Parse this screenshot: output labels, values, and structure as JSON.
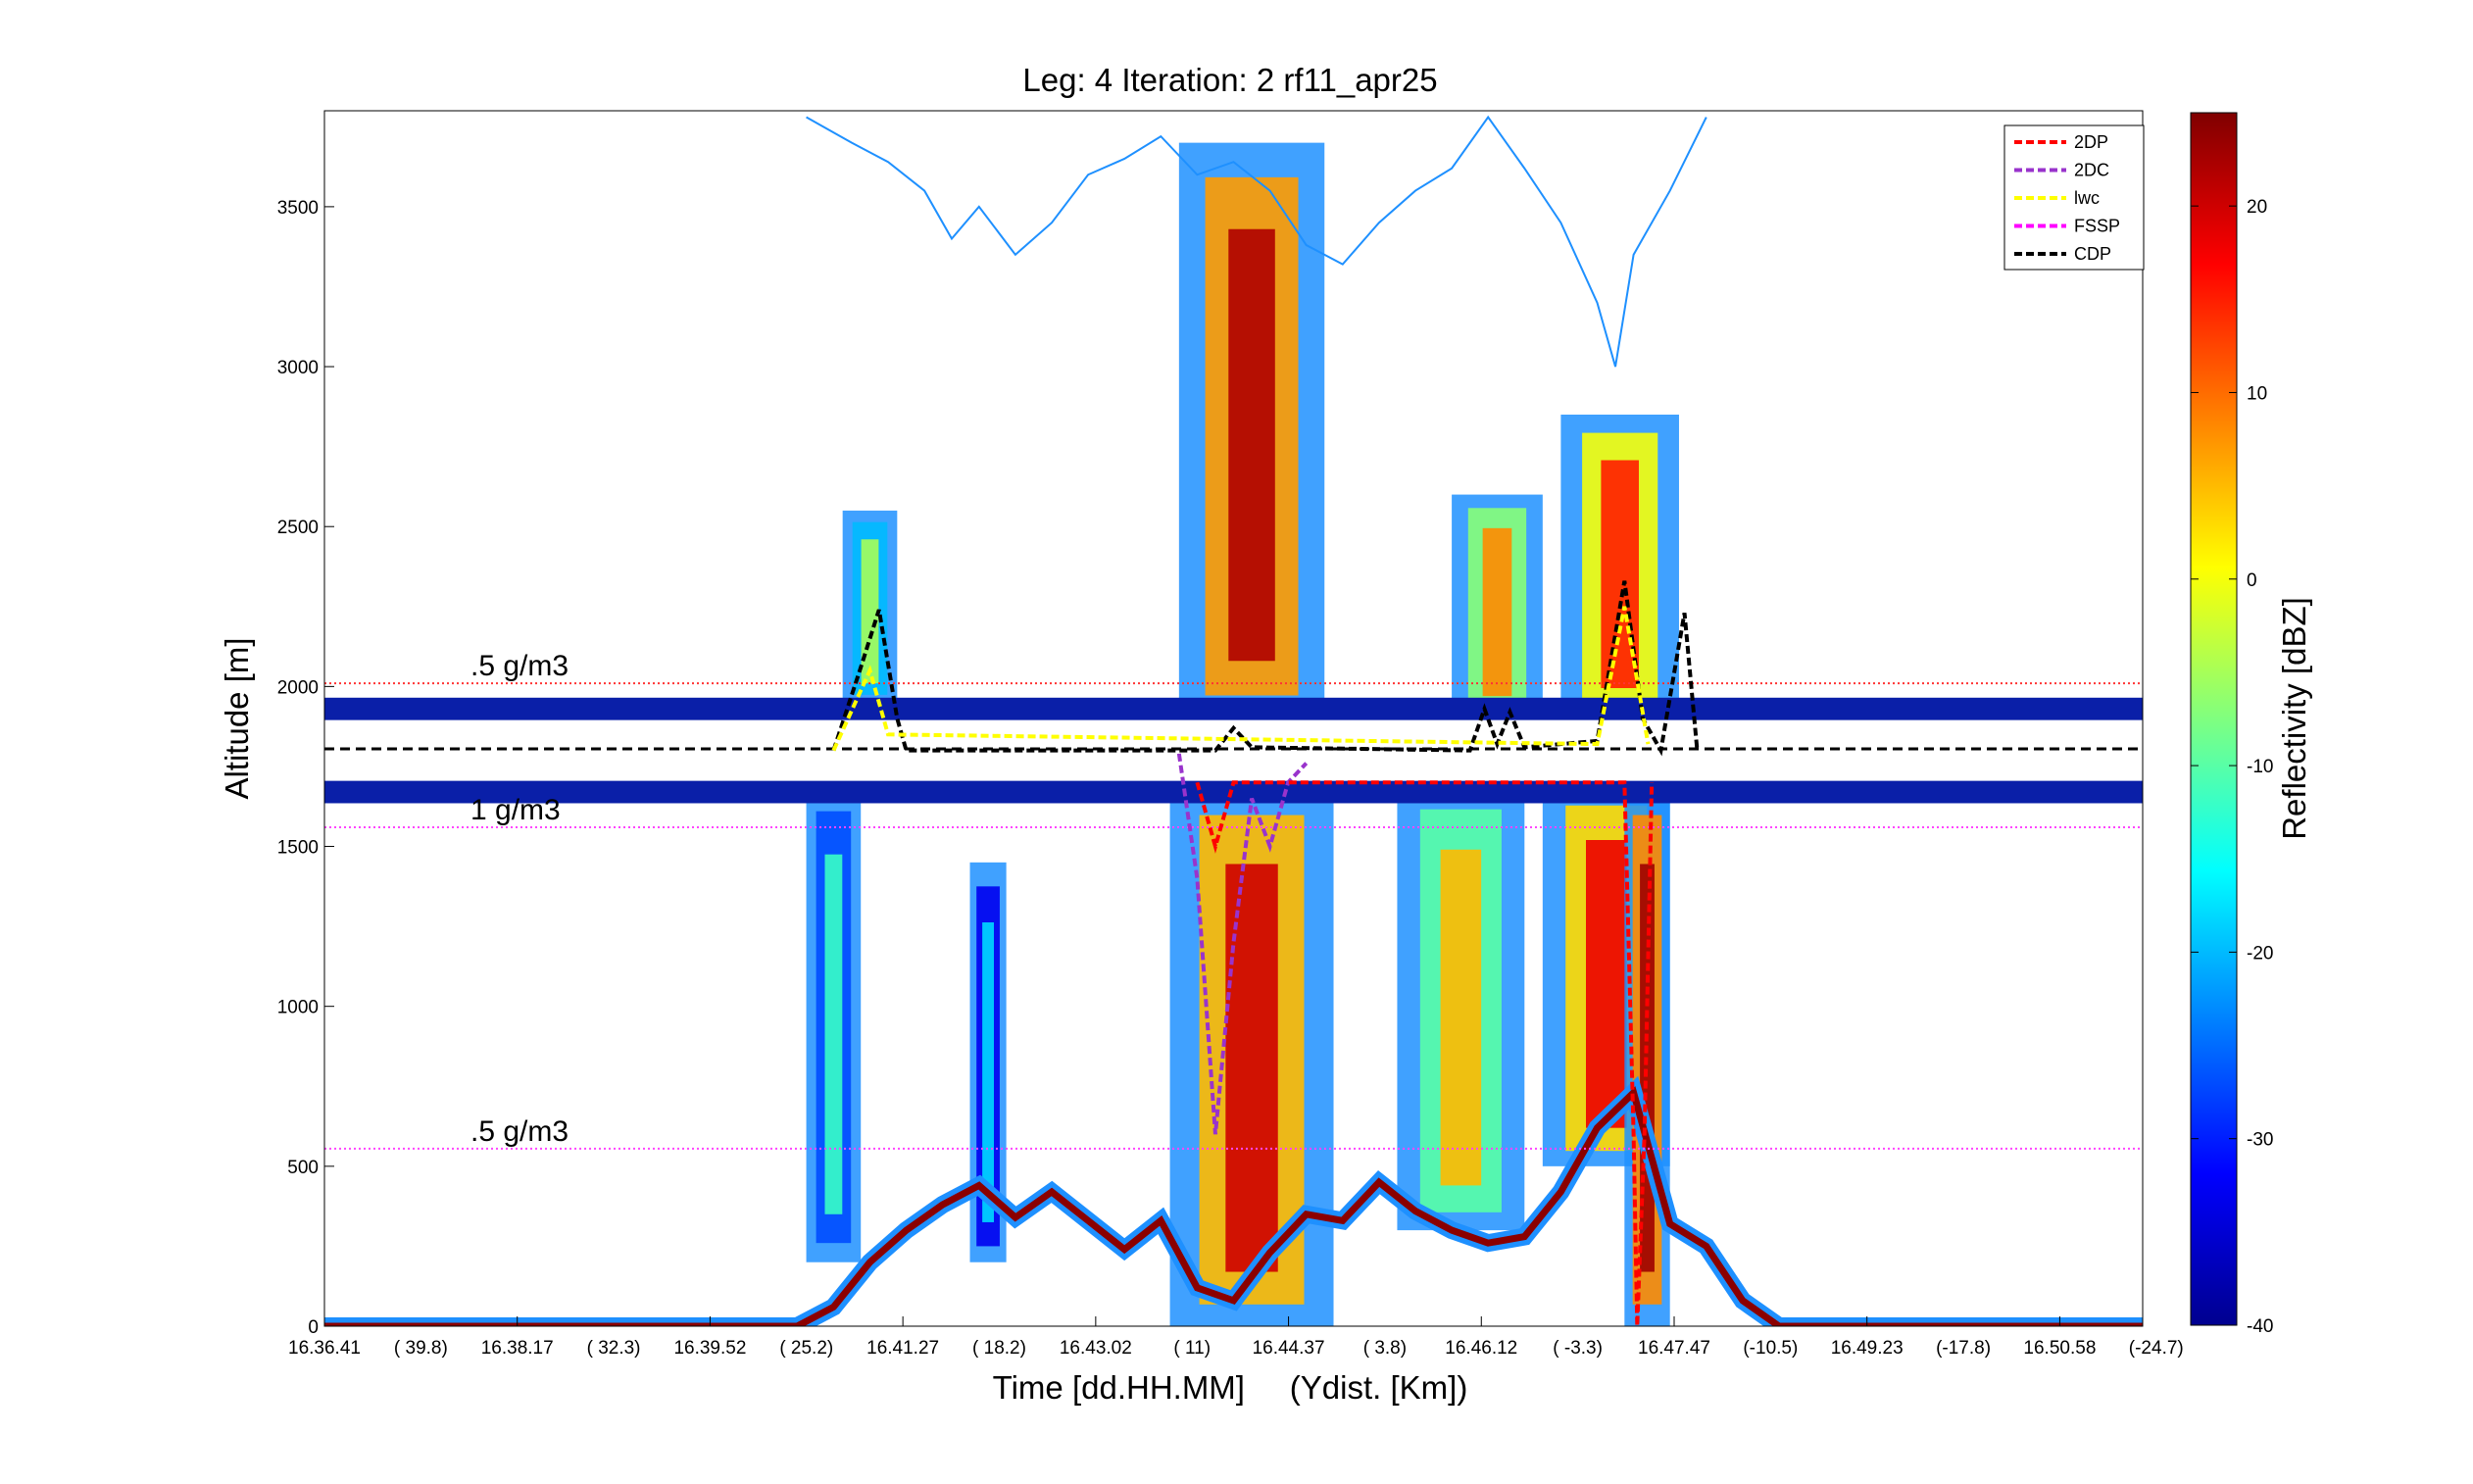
{
  "chart_data": {
    "type": "heatmap",
    "title": "Leg: 4  Iteration: 2  rf11_apr25",
    "xlabel": "Time [dd.HH.MM]     (Ydist. [Km])",
    "ylabel": "Altitude [m]",
    "ylim": [
      0,
      3800
    ],
    "yticks": [
      0,
      500,
      1000,
      1500,
      2000,
      2500,
      3000,
      3500
    ],
    "xtick_labels": [
      {
        "time": "16.36.41",
        "dist": "( 39.8)"
      },
      {
        "time": "16.38.17",
        "dist": "( 32.3)"
      },
      {
        "time": "16.39.52",
        "dist": "( 25.2)"
      },
      {
        "time": "16.41.27",
        "dist": "( 18.2)"
      },
      {
        "time": "16.43.02",
        "dist": "(   11)"
      },
      {
        "time": "16.44.37",
        "dist": "(  3.8)"
      },
      {
        "time": "16.46.12",
        "dist": "( -3.3)"
      },
      {
        "time": "16.47.47",
        "dist": "(-10.5)"
      },
      {
        "time": "16.49.23",
        "dist": "(-17.8)"
      },
      {
        "time": "16.50.58",
        "dist": "(-24.7)"
      }
    ],
    "colorbar": {
      "label": "Reflectivity [dBZ]",
      "range": [
        -40,
        25
      ],
      "ticks": [
        -40,
        -30,
        -20,
        -10,
        0,
        10,
        20
      ]
    },
    "legend": {
      "placement": "top-right",
      "entries": [
        {
          "name": "2DP",
          "color": "#ff0000"
        },
        {
          "name": "2DC",
          "color": "#9933cc"
        },
        {
          "name": "lwc",
          "color": "#ffff00"
        },
        {
          "name": "FSSP",
          "color": "#ff00ff"
        },
        {
          "name": "CDP",
          "color": "#000000"
        }
      ]
    },
    "annotations": [
      {
        "text": ".5 g/m3",
        "altitude": 2010
      },
      {
        "text": "1 g/m3",
        "altitude": 1560
      },
      {
        "text": ".5 g/m3",
        "altitude": 555
      }
    ],
    "reference_lines": [
      {
        "altitude": 2010,
        "color": "#ff3333"
      },
      {
        "altitude": 1560,
        "color": "#ff44ff"
      },
      {
        "altitude": 555,
        "color": "#ff44ff"
      }
    ],
    "flight_altitude": 1805,
    "echo_cells": [
      {
        "x_start": 0.265,
        "x_end": 0.295,
        "bottom": 200,
        "top": 1700,
        "peak_dbz": -12
      },
      {
        "x_start": 0.285,
        "x_end": 0.315,
        "bottom": 1950,
        "top": 2550,
        "peak_dbz": -5
      },
      {
        "x_start": 0.355,
        "x_end": 0.375,
        "bottom": 200,
        "top": 1450,
        "peak_dbz": -18
      },
      {
        "x_start": 0.465,
        "x_end": 0.555,
        "bottom": 0,
        "top": 1700,
        "peak_dbz": 20
      },
      {
        "x_start": 0.47,
        "x_end": 0.55,
        "bottom": 1900,
        "top": 3700,
        "peak_dbz": 22
      },
      {
        "x_start": 0.59,
        "x_end": 0.66,
        "bottom": 300,
        "top": 1700,
        "peak_dbz": 5
      },
      {
        "x_start": 0.62,
        "x_end": 0.67,
        "bottom": 1900,
        "top": 2600,
        "peak_dbz": 8
      },
      {
        "x_start": 0.67,
        "x_end": 0.74,
        "bottom": 500,
        "top": 1700,
        "peak_dbz": 18
      },
      {
        "x_start": 0.68,
        "x_end": 0.745,
        "bottom": 1900,
        "top": 2850,
        "peak_dbz": 15
      },
      {
        "x_start": 0.715,
        "x_end": 0.74,
        "bottom": 0,
        "top": 1700,
        "peak_dbz": 23
      }
    ],
    "surface_profile": [
      {
        "x": 0.0,
        "alt": 0
      },
      {
        "x": 0.26,
        "alt": 0
      },
      {
        "x": 0.28,
        "alt": 60
      },
      {
        "x": 0.3,
        "alt": 200
      },
      {
        "x": 0.32,
        "alt": 300
      },
      {
        "x": 0.34,
        "alt": 380
      },
      {
        "x": 0.36,
        "alt": 440
      },
      {
        "x": 0.38,
        "alt": 340
      },
      {
        "x": 0.4,
        "alt": 420
      },
      {
        "x": 0.42,
        "alt": 330
      },
      {
        "x": 0.44,
        "alt": 240
      },
      {
        "x": 0.46,
        "alt": 330
      },
      {
        "x": 0.48,
        "alt": 120
      },
      {
        "x": 0.5,
        "alt": 80
      },
      {
        "x": 0.52,
        "alt": 230
      },
      {
        "x": 0.54,
        "alt": 350
      },
      {
        "x": 0.56,
        "alt": 330
      },
      {
        "x": 0.58,
        "alt": 450
      },
      {
        "x": 0.6,
        "alt": 360
      },
      {
        "x": 0.62,
        "alt": 300
      },
      {
        "x": 0.64,
        "alt": 260
      },
      {
        "x": 0.66,
        "alt": 280
      },
      {
        "x": 0.68,
        "alt": 420
      },
      {
        "x": 0.7,
        "alt": 620
      },
      {
        "x": 0.72,
        "alt": 730
      },
      {
        "x": 0.74,
        "alt": 320
      },
      {
        "x": 0.76,
        "alt": 250
      },
      {
        "x": 0.78,
        "alt": 80
      },
      {
        "x": 0.8,
        "alt": 0
      },
      {
        "x": 1.0,
        "alt": 0
      }
    ],
    "upper_trace": [
      {
        "x": 0.265,
        "alt": 3780
      },
      {
        "x": 0.29,
        "alt": 3700
      },
      {
        "x": 0.31,
        "alt": 3640
      },
      {
        "x": 0.33,
        "alt": 3550
      },
      {
        "x": 0.345,
        "alt": 3400
      },
      {
        "x": 0.36,
        "alt": 3500
      },
      {
        "x": 0.38,
        "alt": 3350
      },
      {
        "x": 0.4,
        "alt": 3450
      },
      {
        "x": 0.42,
        "alt": 3600
      },
      {
        "x": 0.44,
        "alt": 3650
      },
      {
        "x": 0.46,
        "alt": 3720
      },
      {
        "x": 0.48,
        "alt": 3600
      },
      {
        "x": 0.5,
        "alt": 3640
      },
      {
        "x": 0.52,
        "alt": 3550
      },
      {
        "x": 0.54,
        "alt": 3380
      },
      {
        "x": 0.56,
        "alt": 3320
      },
      {
        "x": 0.58,
        "alt": 3450
      },
      {
        "x": 0.6,
        "alt": 3550
      },
      {
        "x": 0.62,
        "alt": 3620
      },
      {
        "x": 0.64,
        "alt": 3780
      },
      {
        "x": 0.66,
        "alt": 3620
      },
      {
        "x": 0.68,
        "alt": 3450
      },
      {
        "x": 0.7,
        "alt": 3200
      },
      {
        "x": 0.71,
        "alt": 3000
      },
      {
        "x": 0.72,
        "alt": 3350
      },
      {
        "x": 0.74,
        "alt": 3550
      },
      {
        "x": 0.76,
        "alt": 3780
      }
    ],
    "series": [
      {
        "name": "CDP",
        "color": "#000000",
        "points": [
          {
            "x": 0.28,
            "alt": 1800
          },
          {
            "x": 0.295,
            "alt": 2060
          },
          {
            "x": 0.305,
            "alt": 2240
          },
          {
            "x": 0.315,
            "alt": 1900
          },
          {
            "x": 0.32,
            "alt": 1800
          },
          {
            "x": 0.49,
            "alt": 1800
          },
          {
            "x": 0.5,
            "alt": 1870
          },
          {
            "x": 0.51,
            "alt": 1810
          },
          {
            "x": 0.63,
            "alt": 1800
          },
          {
            "x": 0.638,
            "alt": 1930
          },
          {
            "x": 0.645,
            "alt": 1820
          },
          {
            "x": 0.652,
            "alt": 1920
          },
          {
            "x": 0.66,
            "alt": 1810
          },
          {
            "x": 0.7,
            "alt": 1830
          },
          {
            "x": 0.715,
            "alt": 2330
          },
          {
            "x": 0.725,
            "alt": 1900
          },
          {
            "x": 0.735,
            "alt": 1800
          },
          {
            "x": 0.748,
            "alt": 2230
          },
          {
            "x": 0.755,
            "alt": 1800
          }
        ]
      },
      {
        "name": "lwc",
        "color": "#ffff00",
        "points": [
          {
            "x": 0.28,
            "alt": 1800
          },
          {
            "x": 0.3,
            "alt": 2050
          },
          {
            "x": 0.31,
            "alt": 1850
          },
          {
            "x": 0.7,
            "alt": 1820
          },
          {
            "x": 0.715,
            "alt": 2250
          },
          {
            "x": 0.728,
            "alt": 1820
          }
        ]
      },
      {
        "name": "2DC",
        "color": "#9933cc",
        "points": [
          {
            "x": 0.47,
            "alt": 1790
          },
          {
            "x": 0.48,
            "alt": 1400
          },
          {
            "x": 0.49,
            "alt": 600
          },
          {
            "x": 0.5,
            "alt": 1200
          },
          {
            "x": 0.51,
            "alt": 1650
          },
          {
            "x": 0.52,
            "alt": 1500
          },
          {
            "x": 0.53,
            "alt": 1700
          },
          {
            "x": 0.54,
            "alt": 1760
          }
        ]
      },
      {
        "name": "2DP",
        "color": "#ff0000",
        "points": [
          {
            "x": 0.48,
            "alt": 1700
          },
          {
            "x": 0.49,
            "alt": 1500
          },
          {
            "x": 0.5,
            "alt": 1700
          },
          {
            "x": 0.715,
            "alt": 1700
          },
          {
            "x": 0.72,
            "alt": 600
          },
          {
            "x": 0.722,
            "alt": 0
          },
          {
            "x": 0.726,
            "alt": 600
          },
          {
            "x": 0.73,
            "alt": 1700
          }
        ]
      }
    ]
  }
}
